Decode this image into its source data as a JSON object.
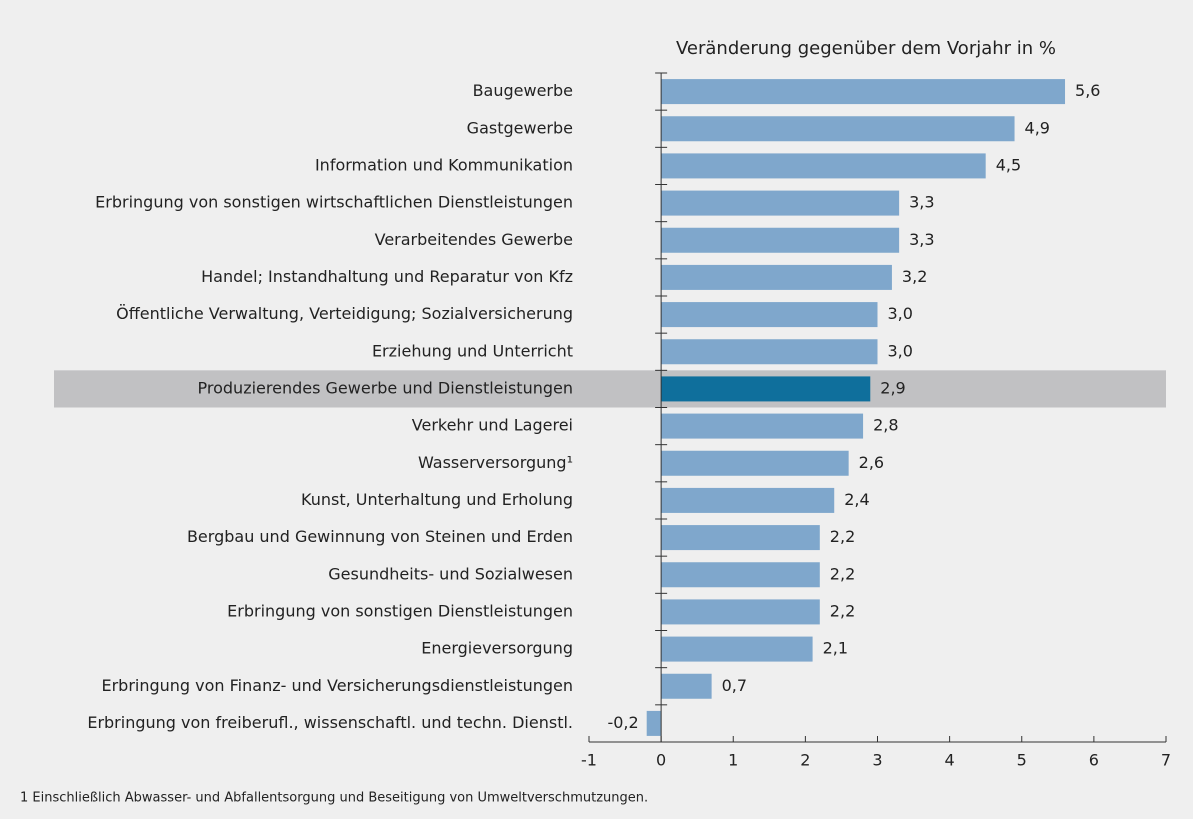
{
  "chart_data": {
    "type": "hbar",
    "title": "Veränderung gegenüber dem Vorjahr in %",
    "categories": [
      "Baugewerbe",
      "Gastgewerbe",
      "Information und Kommunikation",
      "Erbringung von sonstigen wirtschaftlichen Dienstleistungen",
      "Verarbeitendes Gewerbe",
      "Handel; Instandhaltung und Reparatur von Kfz",
      "Öffentliche Verwaltung, Verteidigung; Sozialversicherung",
      "Erziehung und Unterricht",
      "Produzierendes Gewerbe und Dienstleistungen",
      "Verkehr und Lagerei",
      "Wasserversorgung¹",
      "Kunst, Unterhaltung und Erholung",
      "Bergbau und Gewinnung von Steinen und Erden",
      "Gesundheits- und Sozialwesen",
      "Erbringung von sonstigen Dienstleistungen",
      "Energieversorgung",
      "Erbringung von Finanz- und Versicherungsdienstleistungen",
      "Erbringung von freiberufl., wissenschaftl. und techn. Dienstl."
    ],
    "values": [
      5.6,
      4.9,
      4.5,
      3.3,
      3.3,
      3.2,
      3.0,
      3.0,
      2.9,
      2.8,
      2.6,
      2.4,
      2.2,
      2.2,
      2.2,
      2.1,
      0.7,
      -0.2
    ],
    "value_labels": [
      "5,6",
      "4,9",
      "4,5",
      "3,3",
      "3,3",
      "3,2",
      "3,0",
      "3,0",
      "2,9",
      "2,8",
      "2,6",
      "2,4",
      "2,2",
      "2,2",
      "2,2",
      "2,1",
      "0,7",
      "-0,2"
    ],
    "colors": [
      "#7fa7cc",
      "#7fa7cc",
      "#7fa7cc",
      "#7fa7cc",
      "#7fa7cc",
      "#7fa7cc",
      "#7fa7cc",
      "#7fa7cc",
      "#0f6f9c",
      "#7fa7cc",
      "#7fa7cc",
      "#7fa7cc",
      "#7fa7cc",
      "#7fa7cc",
      "#7fa7cc",
      "#7fa7cc",
      "#7fa7cc",
      "#7fa7cc"
    ],
    "highlight_color": "#0f6f9c",
    "xlim": [
      -1,
      7
    ],
    "xticks": [
      -1,
      0,
      1,
      2,
      3,
      4,
      5,
      6,
      7
    ],
    "footnote": "1 Einschließlich Abwasser- und Abfallentsorgung und Beseitigung von Umweltverschmutzungen."
  }
}
